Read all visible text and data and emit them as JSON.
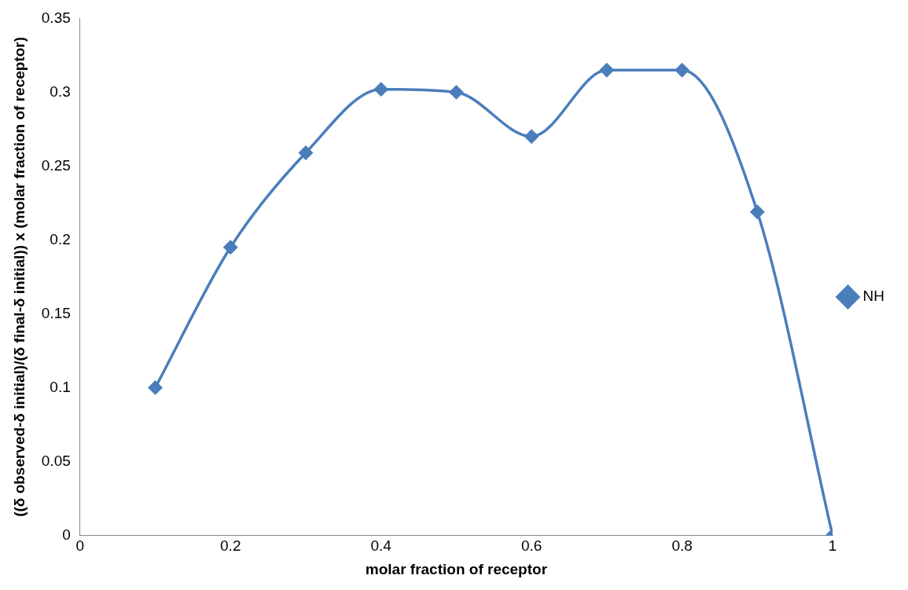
{
  "chart_data": {
    "type": "line",
    "xlabel": "molar fraction of receptor",
    "ylabel": "((δ observed-δ initial)/(δ final-δ initial)) x (molar fraction of receptor)",
    "x": [
      0.1,
      0.2,
      0.3,
      0.4,
      0.5,
      0.6,
      0.7,
      0.8,
      0.9,
      1
    ],
    "series": [
      {
        "name": "NH",
        "color": "#4a7ebb",
        "values": [
          0.1,
          0.195,
          0.259,
          0.302,
          0.3,
          0.27,
          0.315,
          0.315,
          0.219,
          0
        ]
      }
    ],
    "xlim": [
      0,
      1
    ],
    "xticks": [
      0,
      0.2,
      0.4,
      0.6,
      0.8,
      1
    ],
    "ylim": [
      0,
      0.35
    ],
    "yticks": [
      0,
      0.05,
      0.1,
      0.15,
      0.2,
      0.25,
      0.3,
      0.35
    ],
    "grid": false,
    "legend": "right",
    "marker": "diamond",
    "line_style": "solid"
  }
}
